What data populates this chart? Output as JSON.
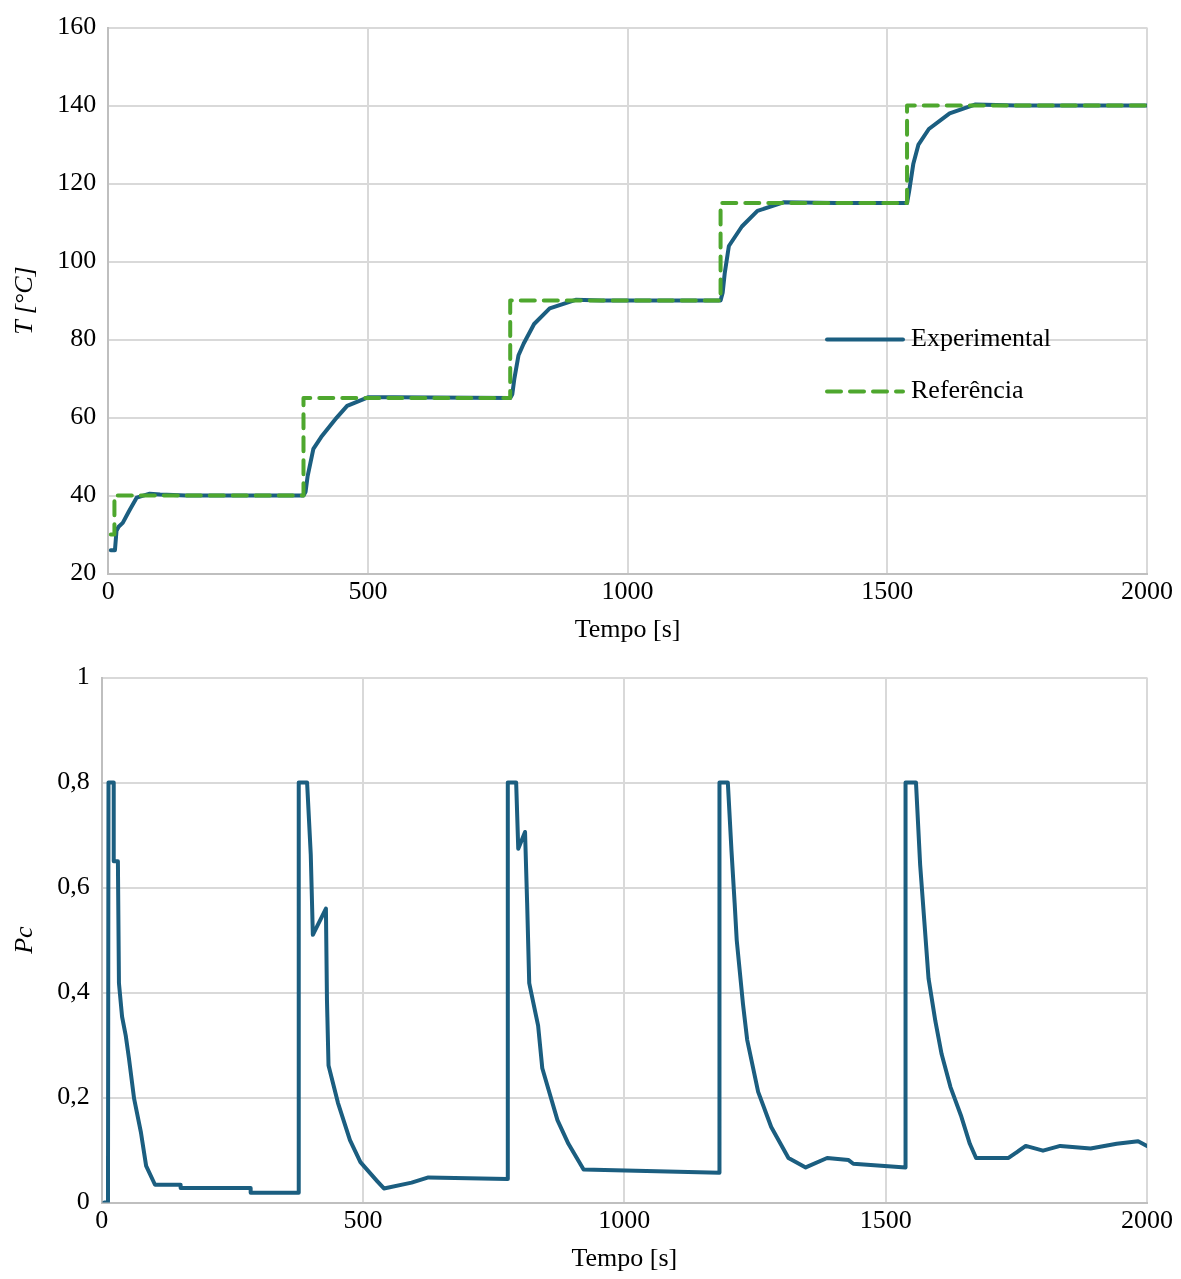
{
  "chart_data": [
    {
      "type": "line",
      "xlabel": "Tempo [s]",
      "ylabel": "T [°C]",
      "xlim": [
        0,
        2000
      ],
      "xticks": [
        0,
        500,
        1000,
        1500,
        2000
      ],
      "ylim": [
        20,
        160
      ],
      "yticks": [
        20,
        40,
        60,
        80,
        100,
        120,
        140,
        160
      ],
      "grid": true,
      "legend": "right",
      "marker": "none",
      "series": [
        {
          "name": "Experimental",
          "color": "#1b5e80",
          "line_style": "solid",
          "x": [
            5,
            13,
            16,
            20,
            28,
            40,
            55,
            80,
            100,
            150,
            376,
            380,
            384,
            395,
            410,
            440,
            460,
            500,
            550,
            774,
            778,
            782,
            790,
            800,
            820,
            850,
            900,
            950,
            1179,
            1183,
            1187,
            1195,
            1220,
            1250,
            1300,
            1400,
            1538,
            1542,
            1550,
            1560,
            1580,
            1620,
            1670,
            1750,
            2000
          ],
          "values": [
            26,
            26,
            31,
            32,
            33,
            36,
            39.5,
            40.5,
            40.3,
            40,
            40,
            41,
            45,
            52,
            55,
            60,
            63,
            65.2,
            65.2,
            65,
            66,
            70,
            76,
            79,
            84,
            88,
            90.2,
            90,
            90,
            92,
            97,
            104,
            109,
            113,
            115.2,
            115,
            115,
            118,
            125,
            130,
            134,
            138,
            140.3,
            140,
            140
          ]
        },
        {
          "name": "Referência",
          "color": "#4ea72e",
          "line_style": "dashed",
          "x": [
            5,
            12,
            12,
            376,
            376,
            774,
            774,
            1179,
            1179,
            1538,
            1538,
            2000
          ],
          "values": [
            30,
            30,
            40,
            40,
            65,
            65,
            90,
            90,
            115,
            115,
            140,
            140
          ]
        }
      ]
    },
    {
      "type": "line",
      "xlabel": "Tempo [s]",
      "ylabel": "Pc",
      "xlim": [
        0,
        2000
      ],
      "xticks": [
        0,
        500,
        1000,
        1500,
        2000
      ],
      "ylim": [
        0,
        1
      ],
      "yticks": [
        0,
        {
          "value": 0.2,
          "label": "0,2"
        },
        {
          "value": 0.4,
          "label": "0,4"
        },
        {
          "value": 0.6,
          "label": "0,6"
        },
        {
          "value": 0.8,
          "label": "0,8"
        },
        1
      ],
      "grid": true,
      "marker": "none",
      "series": [
        {
          "color": "#1b5e80",
          "line_style": "solid",
          "x": [
            5,
            12,
            13,
            23,
            23,
            31,
            33,
            39,
            46,
            52,
            62,
            75,
            85,
            102,
            151,
            151,
            285,
            285,
            377,
            377,
            393,
            400,
            404,
            429,
            431,
            434,
            452,
            475,
            495,
            527,
            540,
            593,
            625,
            777,
            777,
            793,
            797,
            810,
            814,
            818,
            835,
            843,
            872,
            893,
            922,
            1182,
            1182,
            1198,
            1205,
            1211,
            1215,
            1227,
            1235,
            1256,
            1281,
            1314,
            1347,
            1388,
            1429,
            1438,
            1538,
            1538,
            1558,
            1566,
            1574,
            1582,
            1595,
            1607,
            1624,
            1644,
            1661,
            1673,
            1735,
            1768,
            1801,
            1834,
            1892,
            1942,
            1983,
            2000
          ],
          "values": [
            0,
            0,
            0.8,
            0.8,
            0.65,
            0.65,
            0.418,
            0.354,
            0.318,
            0.276,
            0.198,
            0.134,
            0.07,
            0.034,
            0.034,
            0.028,
            0.028,
            0.019,
            0.019,
            0.8,
            0.8,
            0.663,
            0.51,
            0.56,
            0.386,
            0.261,
            0.19,
            0.119,
            0.077,
            0.041,
            0.027,
            0.038,
            0.048,
            0.045,
            0.8,
            0.8,
            0.674,
            0.706,
            0.571,
            0.418,
            0.337,
            0.256,
            0.157,
            0.112,
            0.063,
            0.057,
            0.8,
            0.8,
            0.67,
            0.571,
            0.5,
            0.378,
            0.31,
            0.211,
            0.144,
            0.085,
            0.067,
            0.085,
            0.081,
            0.074,
            0.067,
            0.8,
            0.8,
            0.643,
            0.535,
            0.427,
            0.346,
            0.283,
            0.22,
            0.166,
            0.112,
            0.085,
            0.085,
            0.108,
            0.099,
            0.108,
            0.103,
            0.112,
            0.117,
            0.108
          ]
        }
      ]
    }
  ]
}
